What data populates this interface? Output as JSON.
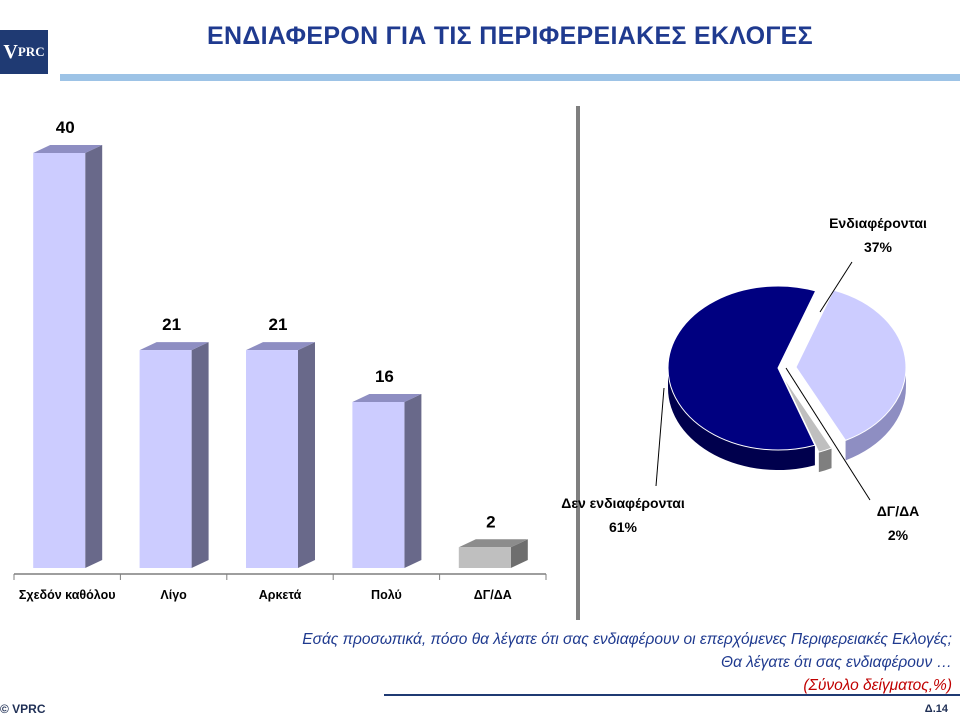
{
  "logo": {
    "text_v": "V",
    "text_rest": "PRC"
  },
  "title": "ΕΝΔΙΑΦΕΡΟΝ ΓΙΑ ΤΙΣ ΠΕΡΙΦΕΡΕΙΑΚΕΣ ΕΚΛΟΓΕΣ",
  "question": {
    "line1": "Εσάς προσωπικά, πόσο θα λέγατε ότι σας ενδιαφέρουν οι επερχόμενες Περιφερειακές Εκλογές;",
    "line2": "Θα λέγατε ότι σας ενδιαφέρουν …",
    "base": "(Σύνολο δείγματος,%)"
  },
  "footer": {
    "copyright": "© VPRC",
    "page": "Δ.14"
  },
  "chart_data": [
    {
      "type": "bar",
      "categories": [
        "Σχεδόν καθόλου",
        "Λίγο",
        "Αρκετά",
        "Πολύ",
        "ΔΓ/ΔΑ"
      ],
      "values": [
        40,
        21,
        21,
        16,
        2
      ],
      "value_labels": [
        "40",
        "21",
        "21",
        "16",
        "2"
      ],
      "ylim": [
        0,
        44
      ],
      "grid": false,
      "colors": {
        "front": "#ccccff",
        "side": "#69698a",
        "top": "#8e8ec2",
        "na_front": "#bfbfbf",
        "na_side": "#6e6e6e",
        "na_top": "#8c8c8c"
      }
    },
    {
      "type": "pie",
      "labels": [
        "Ενδιαφέρονται",
        "Δεν ενδιαφέρονται",
        "ΔΓ/ΔΑ"
      ],
      "values": [
        37,
        61,
        2
      ],
      "value_labels": [
        "37%",
        "61%",
        "2%"
      ],
      "colors": [
        "#ccccff",
        "#000080",
        "#bfbfbf"
      ],
      "exploded": true
    }
  ]
}
